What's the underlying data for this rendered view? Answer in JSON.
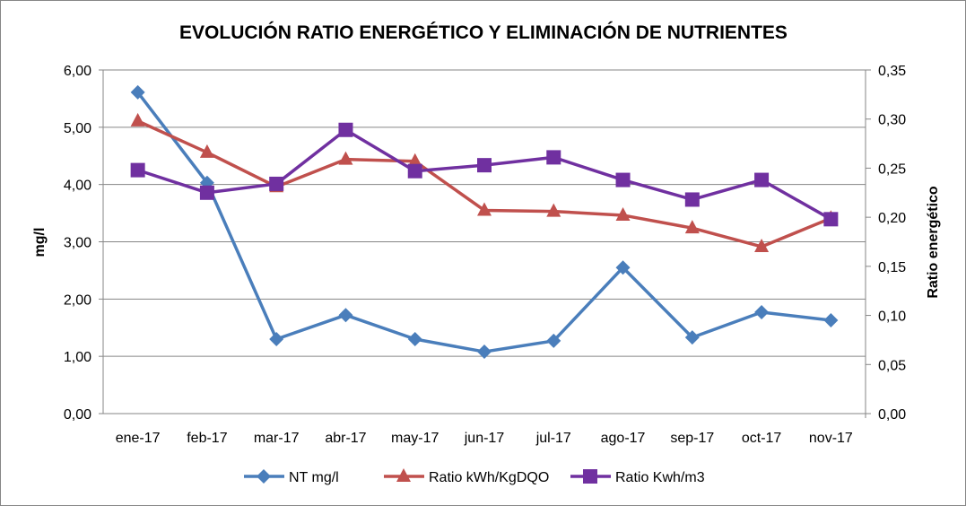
{
  "chart_data": {
    "type": "line",
    "title": "EVOLUCIÓN RATIO ENERGÉTICO Y ELIMINACIÓN DE NUTRIENTES",
    "categories": [
      "ene-17",
      "feb-17",
      "mar-17",
      "abr-17",
      "may-17",
      "jun-17",
      "jul-17",
      "ago-17",
      "sep-17",
      "oct-17",
      "nov-17"
    ],
    "ylabel": "mg/l",
    "y2label": "Ratio energético",
    "ylim": [
      0,
      6
    ],
    "y2lim": [
      0,
      0.35
    ],
    "yticks": [
      "0,00",
      "1,00",
      "2,00",
      "3,00",
      "4,00",
      "5,00",
      "6,00"
    ],
    "y2ticks": [
      "0,00",
      "0,05",
      "0,10",
      "0,15",
      "0,20",
      "0,25",
      "0,30",
      "0,35"
    ],
    "grid": true,
    "legend_position": "bottom",
    "series": [
      {
        "name": "NT mg/l",
        "axis": "left",
        "color": "#4a7ebb",
        "marker": "diamond",
        "values": [
          5.61,
          4.03,
          1.3,
          1.72,
          1.3,
          1.08,
          1.27,
          2.55,
          1.33,
          1.77,
          1.63
        ]
      },
      {
        "name": "Ratio kWh/KgDQO",
        "axis": "right",
        "color": "#c0504d",
        "marker": "triangle",
        "values": [
          0.298,
          0.266,
          0.231,
          0.259,
          0.257,
          0.207,
          0.206,
          0.202,
          0.189,
          0.17,
          0.199
        ]
      },
      {
        "name": "Ratio Kwh/m3",
        "axis": "right",
        "color": "#7030a0",
        "marker": "square",
        "values": [
          0.248,
          0.225,
          0.234,
          0.289,
          0.247,
          0.253,
          0.261,
          0.238,
          0.218,
          0.238,
          0.198
        ]
      }
    ]
  }
}
